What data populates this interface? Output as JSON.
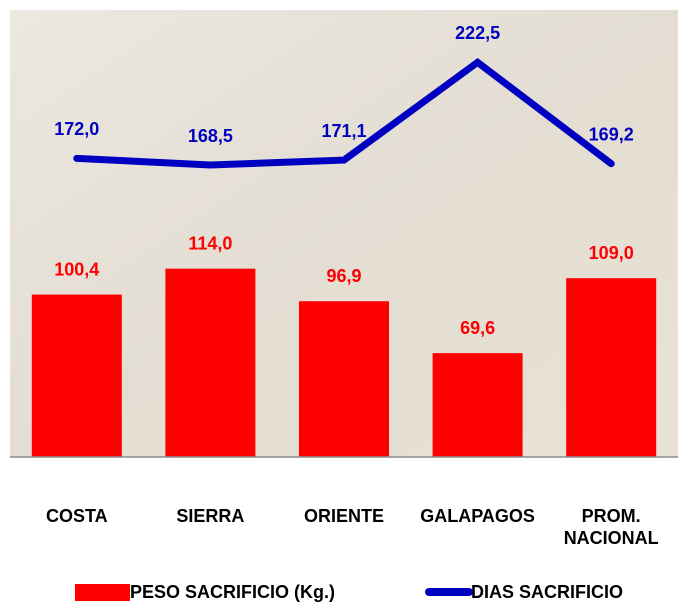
{
  "chart_data": {
    "type": "bar",
    "categories": [
      "COSTA",
      "SIERRA",
      "ORIENTE",
      "GALAPAGOS",
      "PROM.\nNACIONAL"
    ],
    "series": [
      {
        "name": "PESO SACRIFICIO (Kg.)",
        "type": "bar",
        "color": "#ff0000",
        "values": [
          100.4,
          114.0,
          96.9,
          69.6,
          109.0
        ],
        "value_labels": [
          "100,4",
          "114,0",
          "96,9",
          "69,6",
          "109,0"
        ]
      },
      {
        "name": "DIAS SACRIFICIO",
        "type": "line",
        "color": "#0000c0",
        "values": [
          172.0,
          168.5,
          171.1,
          222.5,
          169.2
        ],
        "value_labels": [
          "172,0",
          "168,5",
          "171,1",
          "222,5",
          "169,2"
        ]
      }
    ],
    "ylim": [
      15,
      250
    ],
    "legend": "bottom"
  }
}
